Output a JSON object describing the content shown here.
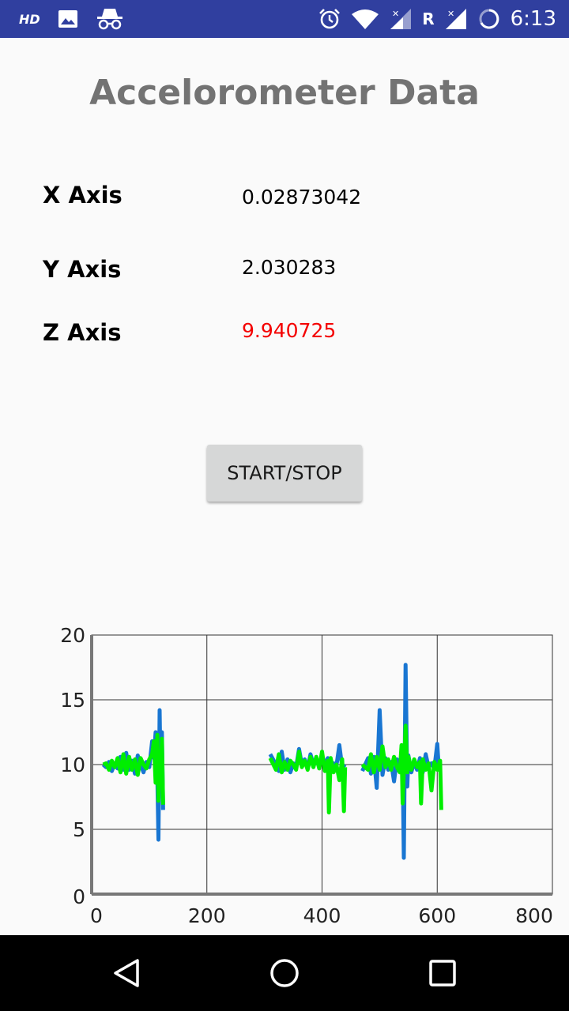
{
  "status_bar": {
    "hd_label": "HD",
    "r_label": "R",
    "time": "6:13",
    "icons": [
      "image-icon",
      "incognito-icon",
      "alarm-icon",
      "wifi-icon",
      "signal-icon",
      "roaming-signal-icon",
      "battery-saver-icon"
    ]
  },
  "title": "Accelorometer Data",
  "readings": {
    "x_label": "X Axis",
    "x_value": "0.02873042",
    "y_label": "Y Axis",
    "y_value": "2.030283",
    "z_label": "Z Axis",
    "z_value": "9.940725",
    "z_color": "#f40000"
  },
  "button": {
    "label": "START/STOP"
  },
  "chart_data": {
    "type": "line",
    "xlim": [
      0,
      800
    ],
    "ylim": [
      0,
      20
    ],
    "x_ticks": [
      "0",
      "200",
      "400",
      "600",
      "800"
    ],
    "y_ticks": [
      "0",
      "5",
      "10",
      "15",
      "20"
    ],
    "grid": true,
    "legend": "none",
    "series": [
      {
        "color": "#1976d2",
        "segments": [
          [
            [
              20,
              10
            ],
            [
              25,
              9.8
            ],
            [
              30,
              10.2
            ],
            [
              35,
              9.5
            ],
            [
              40,
              10.1
            ],
            [
              45,
              9.7
            ],
            [
              50,
              10.6
            ],
            [
              55,
              9.6
            ],
            [
              60,
              10.9
            ],
            [
              65,
              9.6
            ],
            [
              70,
              10.3
            ],
            [
              75,
              9.3
            ],
            [
              80,
              10.7
            ],
            [
              85,
              10
            ],
            [
              90,
              9.4
            ],
            [
              95,
              10.2
            ],
            [
              100,
              9.8
            ],
            [
              105,
              11.8
            ],
            [
              108,
              10.5
            ],
            [
              111,
              12.5
            ],
            [
              114,
              9
            ],
            [
              116,
              4.2
            ],
            [
              118,
              14.2
            ],
            [
              120,
              8.2
            ],
            [
              122,
              12.5
            ],
            [
              124,
              6.5
            ]
          ],
          [
            [
              310,
              10.8
            ],
            [
              320,
              10
            ],
            [
              325,
              9.5
            ],
            [
              330,
              11
            ],
            [
              335,
              9.6
            ],
            [
              340,
              10.4
            ],
            [
              345,
              9.4
            ],
            [
              350,
              10.1
            ],
            [
              355,
              9.8
            ],
            [
              360,
              11.2
            ],
            [
              365,
              10
            ],
            [
              370,
              10.4
            ],
            [
              375,
              9.7
            ],
            [
              380,
              10.8
            ],
            [
              385,
              10
            ],
            [
              390,
              10.4
            ],
            [
              395,
              9.8
            ],
            [
              400,
              10.7
            ],
            [
              405,
              10
            ],
            [
              410,
              10.5
            ],
            [
              415,
              9.6
            ],
            [
              420,
              10.1
            ],
            [
              425,
              9.9
            ],
            [
              430,
              11.5
            ],
            [
              435,
              9.8
            ],
            [
              440,
              10
            ]
          ],
          [
            [
              470,
              9.5
            ],
            [
              480,
              10.5
            ],
            [
              485,
              9.3
            ],
            [
              490,
              10.6
            ],
            [
              495,
              8.2
            ],
            [
              500,
              14.2
            ],
            [
              505,
              9.2
            ],
            [
              510,
              10.5
            ],
            [
              515,
              9.6
            ],
            [
              520,
              10.2
            ],
            [
              525,
              8.7
            ],
            [
              530,
              10.4
            ],
            [
              535,
              10
            ],
            [
              540,
              9.9
            ],
            [
              542,
              2.8
            ],
            [
              545,
              17.7
            ],
            [
              548,
              8.3
            ],
            [
              550,
              10.7
            ],
            [
              555,
              9.4
            ],
            [
              560,
              10.2
            ],
            [
              565,
              9.6
            ],
            [
              570,
              10.5
            ],
            [
              575,
              9.4
            ],
            [
              580,
              10.8
            ],
            [
              585,
              9.8
            ],
            [
              590,
              10.1
            ],
            [
              595,
              9.7
            ],
            [
              600,
              11.6
            ],
            [
              603,
              9.6
            ],
            [
              605,
              10
            ]
          ]
        ]
      },
      {
        "color": "#00ee00",
        "segments": [
          [
            [
              20,
              10
            ],
            [
              25,
              10.1
            ],
            [
              30,
              9.6
            ],
            [
              35,
              10.3
            ],
            [
              40,
              9.8
            ],
            [
              45,
              10.5
            ],
            [
              50,
              9.4
            ],
            [
              55,
              10.8
            ],
            [
              60,
              9.3
            ],
            [
              65,
              10.6
            ],
            [
              70,
              9.6
            ],
            [
              75,
              10.4
            ],
            [
              80,
              9.2
            ],
            [
              85,
              10.5
            ],
            [
              90,
              10
            ],
            [
              95,
              9.7
            ],
            [
              100,
              10.4
            ],
            [
              105,
              10.8
            ],
            [
              108,
              11.8
            ],
            [
              111,
              8.6
            ],
            [
              114,
              12.3
            ],
            [
              116,
              7.2
            ],
            [
              118,
              11
            ],
            [
              120,
              8.6
            ],
            [
              122,
              12
            ],
            [
              124,
              6.9
            ]
          ],
          [
            [
              310,
              10.5
            ],
            [
              320,
              9.6
            ],
            [
              325,
              10.8
            ],
            [
              330,
              9.4
            ],
            [
              335,
              10.2
            ],
            [
              340,
              9.6
            ],
            [
              345,
              10.3
            ],
            [
              350,
              10
            ],
            [
              355,
              9.6
            ],
            [
              360,
              11
            ],
            [
              365,
              9.8
            ],
            [
              370,
              10.3
            ],
            [
              375,
              9.6
            ],
            [
              380,
              10.6
            ],
            [
              385,
              9.8
            ],
            [
              390,
              10.6
            ],
            [
              395,
              9.7
            ],
            [
              400,
              11
            ],
            [
              405,
              9.5
            ],
            [
              410,
              10.3
            ],
            [
              412,
              6.3
            ],
            [
              415,
              10.5
            ],
            [
              420,
              9.4
            ],
            [
              425,
              10
            ],
            [
              430,
              8.8
            ],
            [
              435,
              10.4
            ],
            [
              438,
              6.4
            ],
            [
              440,
              9.8
            ]
          ],
          [
            [
              470,
              10
            ],
            [
              480,
              9.6
            ],
            [
              485,
              10.8
            ],
            [
              490,
              9.4
            ],
            [
              495,
              10.6
            ],
            [
              500,
              9.6
            ],
            [
              505,
              11.4
            ],
            [
              510,
              9.8
            ],
            [
              515,
              10.4
            ],
            [
              520,
              9.6
            ],
            [
              525,
              10.6
            ],
            [
              530,
              9.8
            ],
            [
              535,
              9.4
            ],
            [
              538,
              11.5
            ],
            [
              540,
              7
            ],
            [
              545,
              13
            ],
            [
              548,
              9.4
            ],
            [
              550,
              10.6
            ],
            [
              555,
              9.6
            ],
            [
              560,
              10.4
            ],
            [
              565,
              9.8
            ],
            [
              570,
              10.2
            ],
            [
              572,
              7
            ],
            [
              575,
              10.4
            ],
            [
              580,
              9.6
            ],
            [
              585,
              10.1
            ],
            [
              590,
              8
            ],
            [
              595,
              10.2
            ],
            [
              600,
              9.6
            ],
            [
              605,
              10.3
            ],
            [
              607,
              6.5
            ]
          ]
        ]
      }
    ]
  }
}
